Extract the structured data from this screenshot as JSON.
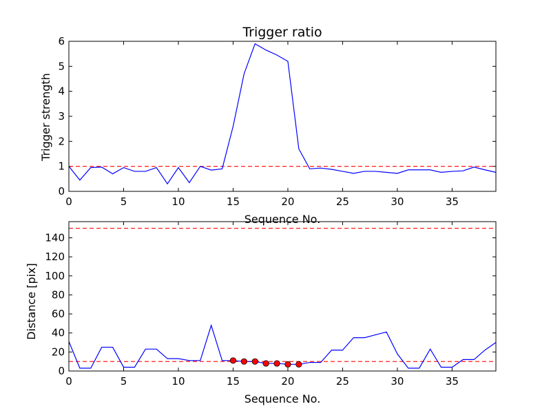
{
  "chart_data": [
    {
      "type": "line",
      "title": "Trigger ratio",
      "xlabel": "Sequence No.",
      "ylabel": "Trigger strength",
      "xlim": [
        0,
        39
      ],
      "ylim": [
        0,
        6
      ],
      "xticks": [
        0,
        5,
        10,
        15,
        20,
        25,
        30,
        35
      ],
      "yticks": [
        0,
        1,
        2,
        3,
        4,
        5,
        6
      ],
      "series": [
        {
          "name": "trigger strength",
          "color": "#0000ff",
          "x": [
            0,
            1,
            2,
            3,
            4,
            5,
            6,
            7,
            8,
            9,
            10,
            11,
            12,
            13,
            14,
            15,
            16,
            17,
            18,
            19,
            20,
            21,
            22,
            23,
            24,
            25,
            26,
            27,
            28,
            29,
            30,
            31,
            32,
            33,
            34,
            35,
            36,
            37,
            38,
            39
          ],
          "y": [
            1.0,
            0.45,
            0.95,
            0.97,
            0.7,
            0.95,
            0.8,
            0.8,
            0.95,
            0.3,
            0.95,
            0.35,
            1.0,
            0.85,
            0.9,
            2.6,
            4.7,
            5.9,
            5.65,
            5.45,
            5.2,
            1.7,
            0.9,
            0.93,
            0.88,
            0.8,
            0.72,
            0.8,
            0.8,
            0.76,
            0.72,
            0.86,
            0.86,
            0.86,
            0.76,
            0.8,
            0.82,
            0.97,
            0.86,
            0.76
          ]
        }
      ],
      "threshold_lines": [
        {
          "y": 1.0,
          "color": "#ff0000",
          "style": "dashed"
        }
      ]
    },
    {
      "type": "line",
      "title": "",
      "xlabel": "Sequence No.",
      "ylabel": "Distance [pix]",
      "xlim": [
        0,
        39
      ],
      "ylim": [
        0,
        157
      ],
      "xticks": [
        0,
        5,
        10,
        15,
        20,
        25,
        30,
        35
      ],
      "yticks": [
        0,
        20,
        40,
        60,
        80,
        100,
        120,
        140
      ],
      "series": [
        {
          "name": "distance",
          "color": "#0000ff",
          "x": [
            0,
            1,
            2,
            3,
            4,
            5,
            6,
            7,
            8,
            9,
            10,
            11,
            12,
            13,
            14,
            15,
            16,
            17,
            18,
            19,
            20,
            21,
            22,
            23,
            24,
            25,
            26,
            27,
            28,
            29,
            30,
            31,
            32,
            33,
            34,
            35,
            36,
            37,
            38,
            39
          ],
          "y": [
            31,
            3,
            3,
            25,
            25,
            4,
            4,
            23,
            23,
            13,
            13,
            11,
            11,
            48,
            11,
            11,
            10,
            10,
            8,
            8,
            7,
            7,
            9,
            9,
            22,
            22,
            35,
            35,
            38,
            41,
            18,
            3,
            3,
            23,
            4,
            4,
            12,
            12,
            22,
            30
          ]
        }
      ],
      "markers": {
        "color": "#ff0000",
        "x": [
          15,
          16,
          17,
          18,
          19,
          20,
          21
        ],
        "y": [
          11,
          10,
          10,
          8,
          8,
          7,
          7
        ]
      },
      "threshold_lines": [
        {
          "y": 10,
          "color": "#ff0000",
          "style": "dashed"
        },
        {
          "y": 150,
          "color": "#ff0000",
          "style": "dashed"
        }
      ]
    }
  ]
}
